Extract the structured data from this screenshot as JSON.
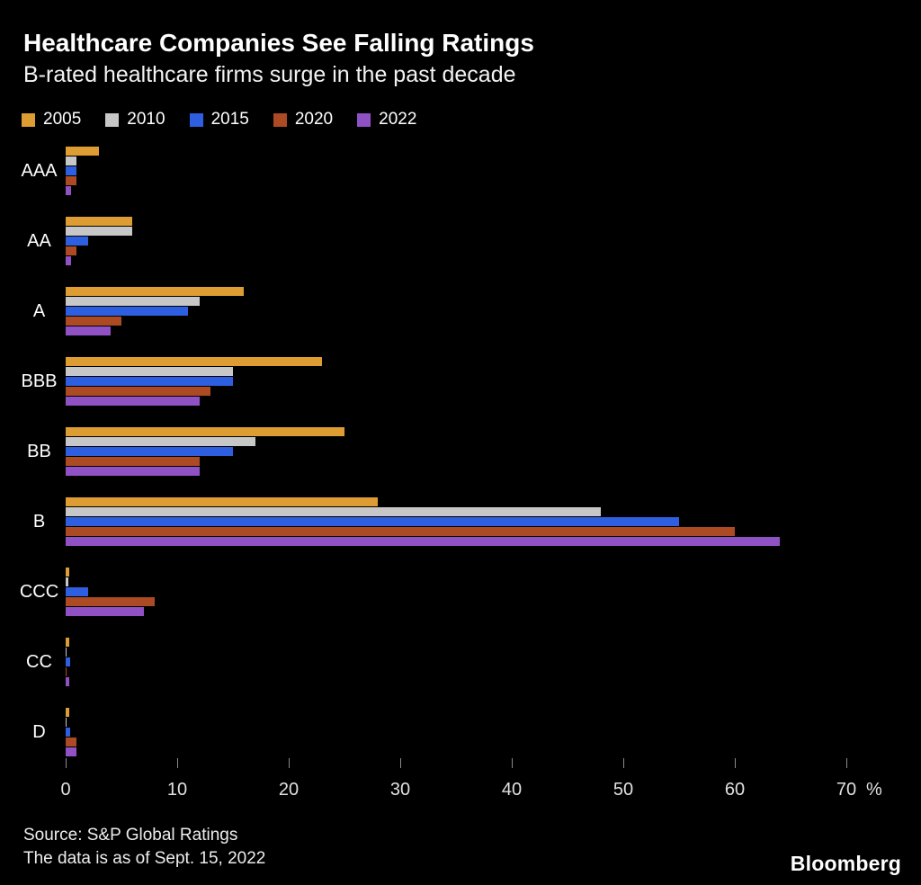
{
  "chart_data": {
    "type": "bar",
    "orientation": "horizontal",
    "title": "Healthcare Companies See Falling Ratings",
    "subtitle": "B-rated healthcare firms surge in the past decade",
    "categories": [
      "AAA",
      "AA",
      "A",
      "BBB",
      "BB",
      "B",
      "CCC",
      "CC",
      "D"
    ],
    "series": [
      {
        "name": "2005",
        "color": "#dd9d33",
        "values": [
          3,
          6,
          16,
          23,
          25,
          28,
          0.3,
          0.3,
          0.3
        ]
      },
      {
        "name": "2010",
        "color": "#c7c7c7",
        "values": [
          1,
          6,
          12,
          15,
          17,
          48,
          0.2,
          0.1,
          0.1
        ]
      },
      {
        "name": "2015",
        "color": "#2e5fe0",
        "values": [
          1,
          2,
          11,
          15,
          15,
          55,
          2,
          0.4,
          0.4
        ]
      },
      {
        "name": "2020",
        "color": "#ab4a23",
        "values": [
          1,
          1,
          5,
          13,
          12,
          60,
          8,
          0.1,
          1
        ]
      },
      {
        "name": "2022",
        "color": "#8f51c4",
        "values": [
          0.5,
          0.5,
          4,
          12,
          12,
          64,
          7,
          0.3,
          1
        ]
      }
    ],
    "xlim": [
      0,
      70
    ],
    "xticks": [
      0,
      10,
      20,
      30,
      40,
      50,
      60,
      70
    ],
    "x_unit": "%",
    "legend_position": "top",
    "grid": false,
    "source_line1": "Source: S&P Global Ratings",
    "source_line2": "The data is as of Sept. 15, 2022",
    "brand": "Bloomberg"
  }
}
